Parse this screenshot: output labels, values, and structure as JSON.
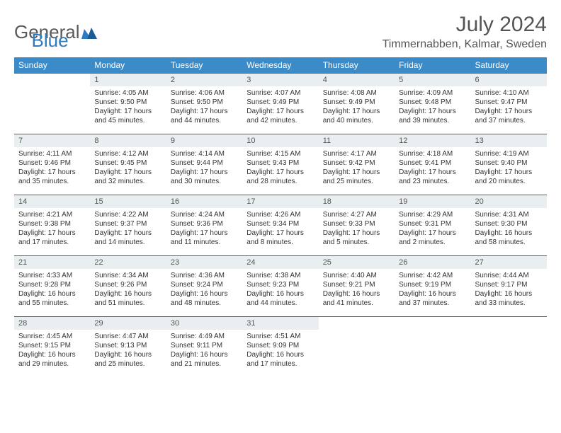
{
  "logo": {
    "text1": "General",
    "text2": "Blue"
  },
  "title": "July 2024",
  "location": "Timmernabben, Kalmar, Sweden",
  "colors": {
    "header_bg": "#3b8bc8",
    "header_text": "#ffffff",
    "daynum_bg": "#e9eef1",
    "row_border": "#2f6ea5",
    "logo_gray": "#5a5a5a",
    "logo_blue": "#2e7cc0",
    "text": "#333333"
  },
  "weekdays": [
    "Sunday",
    "Monday",
    "Tuesday",
    "Wednesday",
    "Thursday",
    "Friday",
    "Saturday"
  ],
  "weeks": [
    [
      {
        "n": "",
        "sr": "",
        "ss": "",
        "dl": ""
      },
      {
        "n": "1",
        "sr": "Sunrise: 4:05 AM",
        "ss": "Sunset: 9:50 PM",
        "dl": "Daylight: 17 hours and 45 minutes."
      },
      {
        "n": "2",
        "sr": "Sunrise: 4:06 AM",
        "ss": "Sunset: 9:50 PM",
        "dl": "Daylight: 17 hours and 44 minutes."
      },
      {
        "n": "3",
        "sr": "Sunrise: 4:07 AM",
        "ss": "Sunset: 9:49 PM",
        "dl": "Daylight: 17 hours and 42 minutes."
      },
      {
        "n": "4",
        "sr": "Sunrise: 4:08 AM",
        "ss": "Sunset: 9:49 PM",
        "dl": "Daylight: 17 hours and 40 minutes."
      },
      {
        "n": "5",
        "sr": "Sunrise: 4:09 AM",
        "ss": "Sunset: 9:48 PM",
        "dl": "Daylight: 17 hours and 39 minutes."
      },
      {
        "n": "6",
        "sr": "Sunrise: 4:10 AM",
        "ss": "Sunset: 9:47 PM",
        "dl": "Daylight: 17 hours and 37 minutes."
      }
    ],
    [
      {
        "n": "7",
        "sr": "Sunrise: 4:11 AM",
        "ss": "Sunset: 9:46 PM",
        "dl": "Daylight: 17 hours and 35 minutes."
      },
      {
        "n": "8",
        "sr": "Sunrise: 4:12 AM",
        "ss": "Sunset: 9:45 PM",
        "dl": "Daylight: 17 hours and 32 minutes."
      },
      {
        "n": "9",
        "sr": "Sunrise: 4:14 AM",
        "ss": "Sunset: 9:44 PM",
        "dl": "Daylight: 17 hours and 30 minutes."
      },
      {
        "n": "10",
        "sr": "Sunrise: 4:15 AM",
        "ss": "Sunset: 9:43 PM",
        "dl": "Daylight: 17 hours and 28 minutes."
      },
      {
        "n": "11",
        "sr": "Sunrise: 4:17 AM",
        "ss": "Sunset: 9:42 PM",
        "dl": "Daylight: 17 hours and 25 minutes."
      },
      {
        "n": "12",
        "sr": "Sunrise: 4:18 AM",
        "ss": "Sunset: 9:41 PM",
        "dl": "Daylight: 17 hours and 23 minutes."
      },
      {
        "n": "13",
        "sr": "Sunrise: 4:19 AM",
        "ss": "Sunset: 9:40 PM",
        "dl": "Daylight: 17 hours and 20 minutes."
      }
    ],
    [
      {
        "n": "14",
        "sr": "Sunrise: 4:21 AM",
        "ss": "Sunset: 9:38 PM",
        "dl": "Daylight: 17 hours and 17 minutes."
      },
      {
        "n": "15",
        "sr": "Sunrise: 4:22 AM",
        "ss": "Sunset: 9:37 PM",
        "dl": "Daylight: 17 hours and 14 minutes."
      },
      {
        "n": "16",
        "sr": "Sunrise: 4:24 AM",
        "ss": "Sunset: 9:36 PM",
        "dl": "Daylight: 17 hours and 11 minutes."
      },
      {
        "n": "17",
        "sr": "Sunrise: 4:26 AM",
        "ss": "Sunset: 9:34 PM",
        "dl": "Daylight: 17 hours and 8 minutes."
      },
      {
        "n": "18",
        "sr": "Sunrise: 4:27 AM",
        "ss": "Sunset: 9:33 PM",
        "dl": "Daylight: 17 hours and 5 minutes."
      },
      {
        "n": "19",
        "sr": "Sunrise: 4:29 AM",
        "ss": "Sunset: 9:31 PM",
        "dl": "Daylight: 17 hours and 2 minutes."
      },
      {
        "n": "20",
        "sr": "Sunrise: 4:31 AM",
        "ss": "Sunset: 9:30 PM",
        "dl": "Daylight: 16 hours and 58 minutes."
      }
    ],
    [
      {
        "n": "21",
        "sr": "Sunrise: 4:33 AM",
        "ss": "Sunset: 9:28 PM",
        "dl": "Daylight: 16 hours and 55 minutes."
      },
      {
        "n": "22",
        "sr": "Sunrise: 4:34 AM",
        "ss": "Sunset: 9:26 PM",
        "dl": "Daylight: 16 hours and 51 minutes."
      },
      {
        "n": "23",
        "sr": "Sunrise: 4:36 AM",
        "ss": "Sunset: 9:24 PM",
        "dl": "Daylight: 16 hours and 48 minutes."
      },
      {
        "n": "24",
        "sr": "Sunrise: 4:38 AM",
        "ss": "Sunset: 9:23 PM",
        "dl": "Daylight: 16 hours and 44 minutes."
      },
      {
        "n": "25",
        "sr": "Sunrise: 4:40 AM",
        "ss": "Sunset: 9:21 PM",
        "dl": "Daylight: 16 hours and 41 minutes."
      },
      {
        "n": "26",
        "sr": "Sunrise: 4:42 AM",
        "ss": "Sunset: 9:19 PM",
        "dl": "Daylight: 16 hours and 37 minutes."
      },
      {
        "n": "27",
        "sr": "Sunrise: 4:44 AM",
        "ss": "Sunset: 9:17 PM",
        "dl": "Daylight: 16 hours and 33 minutes."
      }
    ],
    [
      {
        "n": "28",
        "sr": "Sunrise: 4:45 AM",
        "ss": "Sunset: 9:15 PM",
        "dl": "Daylight: 16 hours and 29 minutes."
      },
      {
        "n": "29",
        "sr": "Sunrise: 4:47 AM",
        "ss": "Sunset: 9:13 PM",
        "dl": "Daylight: 16 hours and 25 minutes."
      },
      {
        "n": "30",
        "sr": "Sunrise: 4:49 AM",
        "ss": "Sunset: 9:11 PM",
        "dl": "Daylight: 16 hours and 21 minutes."
      },
      {
        "n": "31",
        "sr": "Sunrise: 4:51 AM",
        "ss": "Sunset: 9:09 PM",
        "dl": "Daylight: 16 hours and 17 minutes."
      },
      {
        "n": "",
        "sr": "",
        "ss": "",
        "dl": ""
      },
      {
        "n": "",
        "sr": "",
        "ss": "",
        "dl": ""
      },
      {
        "n": "",
        "sr": "",
        "ss": "",
        "dl": ""
      }
    ]
  ]
}
